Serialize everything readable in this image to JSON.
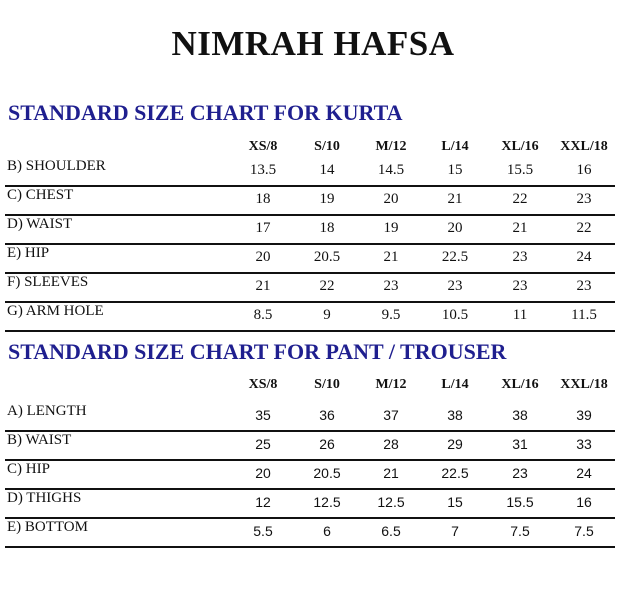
{
  "brand": "NIMRAH HAFSA",
  "kurta": {
    "heading": "STANDARD SIZE CHART FOR KURTA",
    "sizes": [
      "XS/8",
      "S/10",
      "M/12",
      "L/14",
      "XL/16",
      "XXL/18"
    ],
    "rows": [
      {
        "label": "B) SHOULDER",
        "values": [
          "13.5",
          "14",
          "14.5",
          "15",
          "15.5",
          "16"
        ]
      },
      {
        "label": "C) CHEST",
        "values": [
          "18",
          "19",
          "20",
          "21",
          "22",
          "23"
        ]
      },
      {
        "label": "D) WAIST",
        "values": [
          "17",
          "18",
          "19",
          "20",
          "21",
          "22"
        ]
      },
      {
        "label": "E) HIP",
        "values": [
          "20",
          "20.5",
          "21",
          "22.5",
          "23",
          "24"
        ]
      },
      {
        "label": "F) SLEEVES",
        "values": [
          "21",
          "22",
          "23",
          "23",
          "23",
          "23"
        ]
      },
      {
        "label": "G) ARM HOLE",
        "values": [
          "8.5",
          "9",
          "9.5",
          "10.5",
          "11",
          "11.5"
        ]
      }
    ]
  },
  "pant": {
    "heading": "STANDARD SIZE CHART FOR PANT / TROUSER",
    "sizes": [
      "XS/8",
      "S/10",
      "M/12",
      "L/14",
      "XL/16",
      "XXL/18"
    ],
    "rows": [
      {
        "label": "A) LENGTH",
        "values": [
          "35",
          "36",
          "37",
          "38",
          "38",
          "39"
        ]
      },
      {
        "label": "B) WAIST",
        "values": [
          "25",
          "26",
          "28",
          "29",
          "31",
          "33"
        ]
      },
      {
        "label": "C) HIP",
        "values": [
          "20",
          "20.5",
          "21",
          "22.5",
          "23",
          "24"
        ]
      },
      {
        "label": "D) THIGHS",
        "values": [
          "12",
          "12.5",
          "12.5",
          "15",
          "15.5",
          "16"
        ]
      },
      {
        "label": "E) BOTTOM",
        "values": [
          "5.5",
          "6",
          "6.5",
          "7",
          "7.5",
          "7.5"
        ]
      }
    ]
  },
  "colors": {
    "heading": "#1f1f8f",
    "text": "#111111"
  }
}
